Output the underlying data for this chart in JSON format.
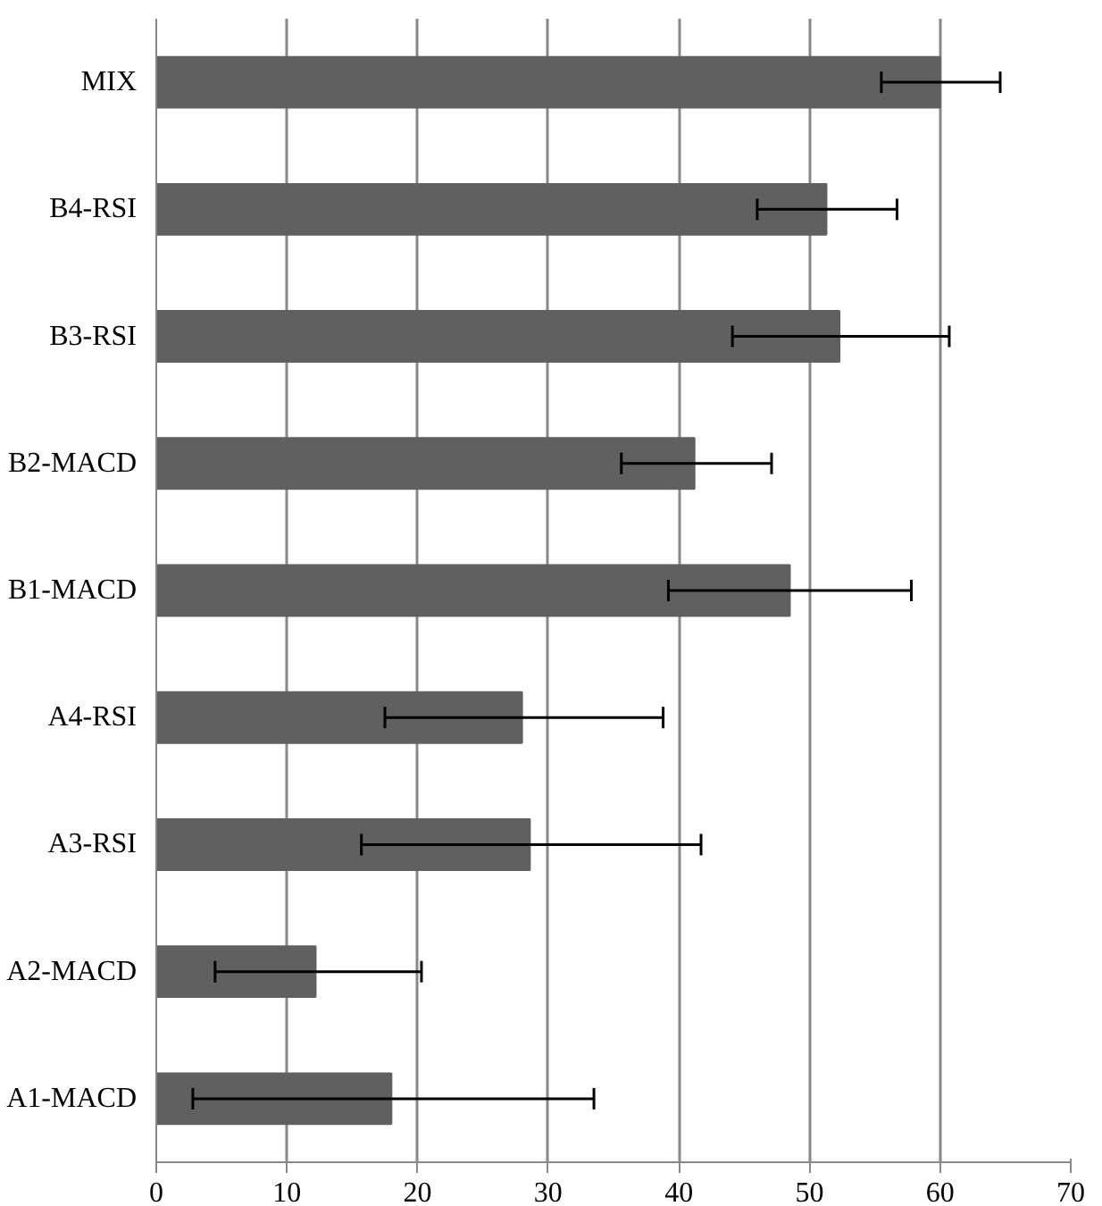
{
  "chart_data": {
    "type": "bar",
    "orientation": "horizontal",
    "categories": [
      "MIX",
      "B4-RSI",
      "B3-RSI",
      "B2-MACD",
      "B1-MACD",
      "A4-RSI",
      "A3-RSI",
      "A2-MACD",
      "A1-MACD"
    ],
    "values": [
      60.0,
      51.3,
      52.3,
      41.2,
      48.5,
      28.0,
      28.6,
      12.2,
      18.0
    ],
    "errors": [
      [
        55.5,
        64.6
      ],
      [
        46.0,
        56.7
      ],
      [
        44.1,
        60.7
      ],
      [
        35.6,
        47.1
      ],
      [
        39.2,
        57.8
      ],
      [
        17.5,
        38.8
      ],
      [
        15.7,
        41.7
      ],
      [
        4.5,
        20.3
      ],
      [
        2.8,
        33.5
      ]
    ],
    "color": "#606060",
    "xlim": [
      0,
      70
    ],
    "xticks": [
      0,
      10,
      20,
      30,
      40,
      50,
      60,
      70
    ],
    "grid": "x"
  }
}
